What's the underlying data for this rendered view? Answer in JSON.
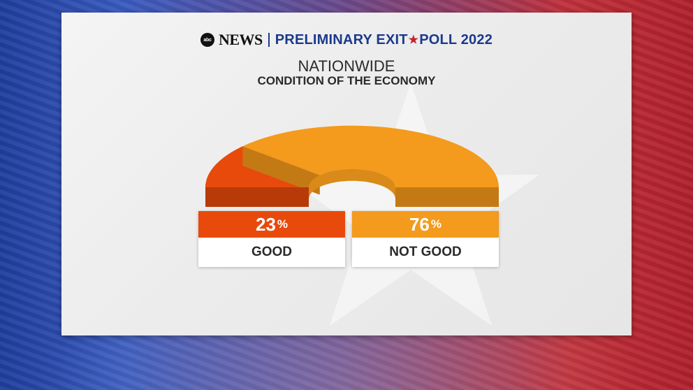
{
  "header": {
    "logo_text": "abc",
    "network": "NEWS",
    "program_part1": "PRELIMINARY EXIT",
    "program_part2": "POLL 2022"
  },
  "chart_data": {
    "type": "pie",
    "style": "half-donut gauge",
    "title": "NATIONWIDE",
    "subtitle": "CONDITION OF THE ECONOMY",
    "categories": [
      "GOOD",
      "NOT GOOD"
    ],
    "values": [
      23,
      76
    ],
    "value_labels": [
      "23",
      "76"
    ],
    "unit": "%",
    "colors": [
      "#e84a0c",
      "#f49a1c"
    ],
    "dark_colors": [
      "#b83a08",
      "#c47a14"
    ]
  },
  "colors": {
    "brand_blue": "#1c3a8c",
    "star_red": "#c8202e"
  }
}
